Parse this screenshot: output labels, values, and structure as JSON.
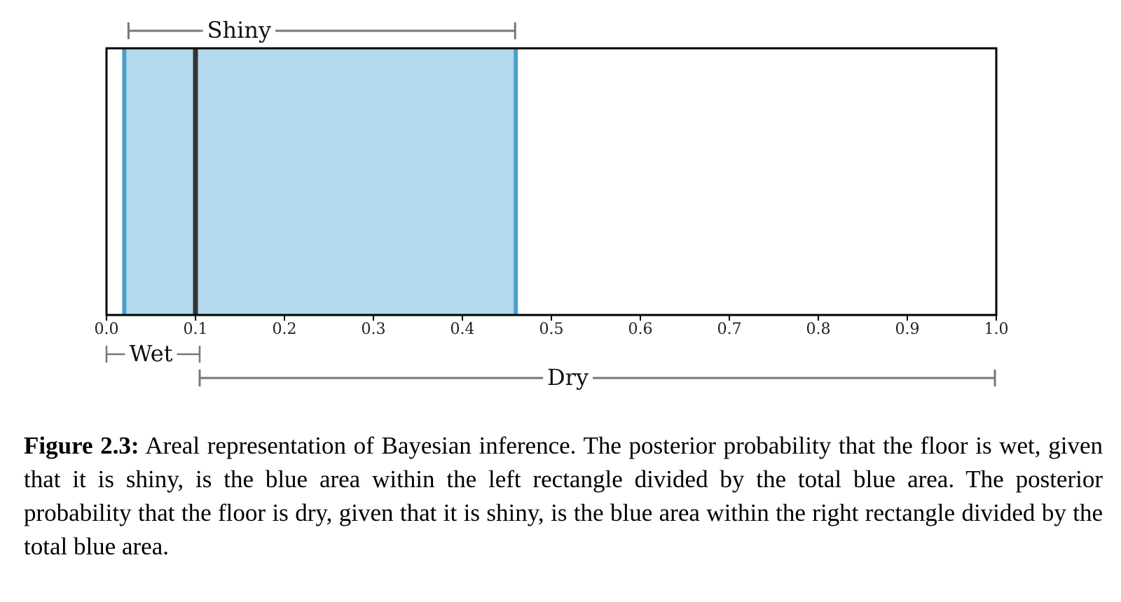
{
  "chart_data": {
    "type": "area",
    "xlim": [
      0.0,
      1.0
    ],
    "x_ticks": [
      "0.0",
      "0.1",
      "0.2",
      "0.3",
      "0.4",
      "0.5",
      "0.6",
      "0.7",
      "0.8",
      "0.9",
      "1.0"
    ],
    "partition": 0.1,
    "shaded_interval": [
      0.02,
      0.46
    ],
    "brackets": [
      {
        "label": "Shiny",
        "from": 0.02,
        "to": 0.46,
        "side": "top"
      },
      {
        "label": "Wet",
        "from": 0.0,
        "to": 0.1,
        "side": "bottom"
      },
      {
        "label": "Dry",
        "from": 0.1,
        "to": 1.0,
        "side": "bottom"
      }
    ],
    "colors": {
      "fill": "#b3d9ec",
      "edge": "#4b9fc6",
      "partition": "#333333",
      "frame": "#000000",
      "bracket": "#777777"
    }
  },
  "caption": {
    "label": "Figure 2.3:",
    "text": "Areal representation of Bayesian inference. The posterior probability that the floor is wet, given that it is shiny, is the blue area within the left rectangle divided by the total blue area. The posterior probability that the floor is dry, given that it is shiny, is the blue area within the right rectangle divided by the total blue area."
  }
}
